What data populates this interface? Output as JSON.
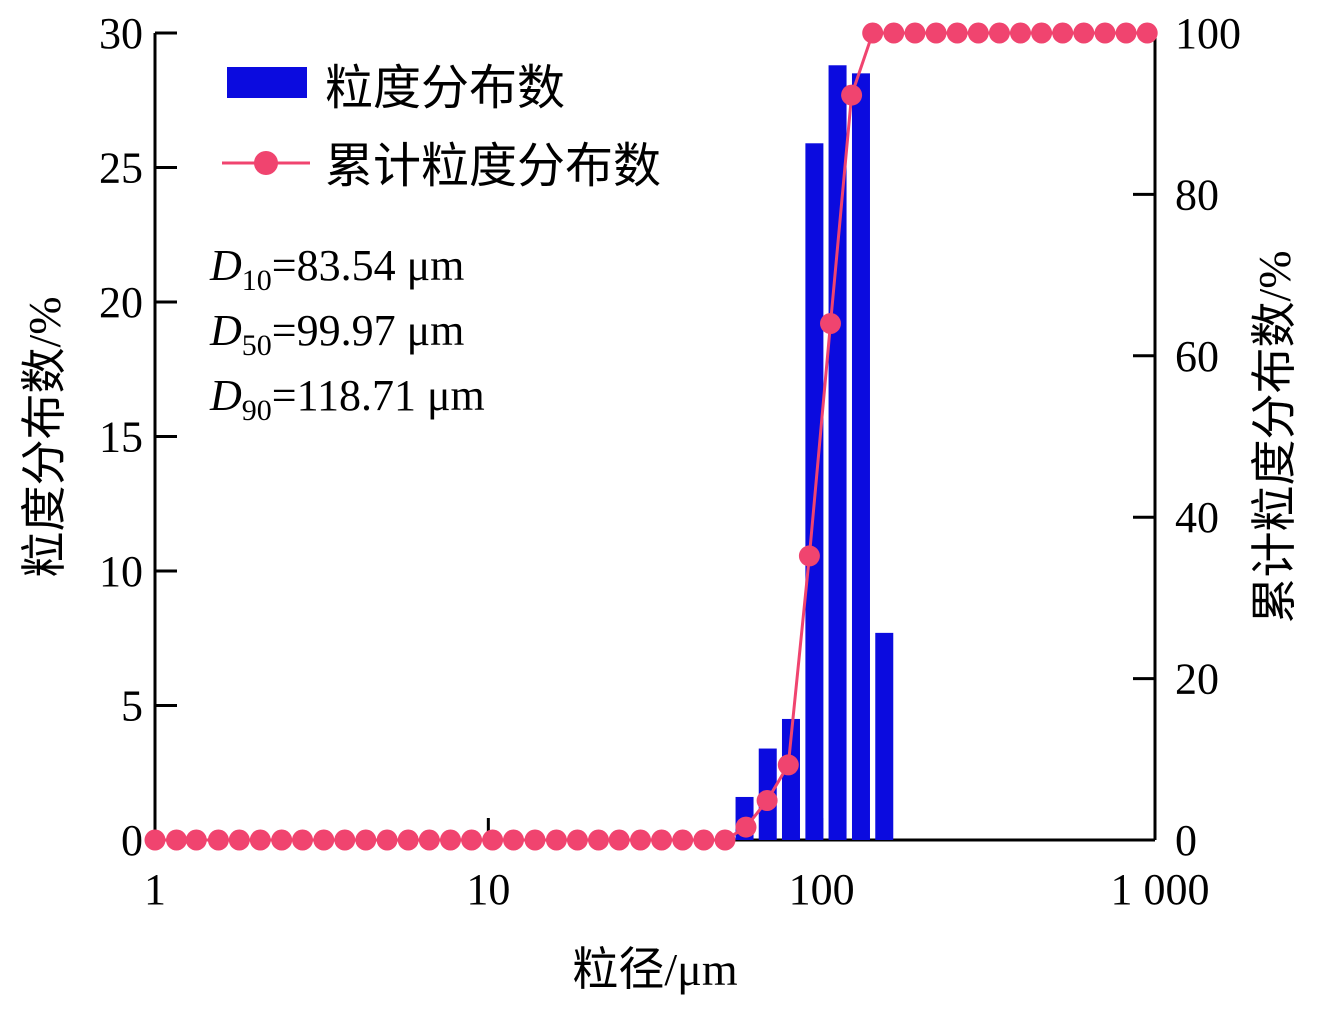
{
  "chart_data": {
    "type": "bar+line",
    "xscale": "log",
    "xlim": [
      1,
      1000
    ],
    "x_tick_labels": [
      "1",
      "10",
      "100",
      "1 000"
    ],
    "x_ticks": [
      1,
      10,
      100,
      1000
    ],
    "xlabel": "粒径/μm",
    "ylabel_left": "粒度分布数/%",
    "ylabel_right": "累计粒度分布数/%",
    "ylim_left": [
      0,
      30
    ],
    "ylim_right": [
      0,
      100
    ],
    "y_ticks_left": [
      0,
      5,
      10,
      15,
      20,
      25,
      30
    ],
    "y_ticks_right": [
      0,
      20,
      40,
      60,
      80,
      100
    ],
    "series": [
      {
        "name": "粒度分布数",
        "type": "bar",
        "axis": "left",
        "color": "#0b0bdf",
        "x": [
          58.7,
          68.9,
          80.9,
          95.1,
          111.6,
          131.2,
          154.1
        ],
        "values": [
          1.6,
          3.4,
          4.5,
          25.9,
          28.8,
          28.5,
          7.7
        ]
      },
      {
        "name": "累计粒度分布数",
        "type": "line",
        "axis": "right",
        "color": "#f0446f",
        "x": [
          1.0,
          1.16,
          1.33,
          1.55,
          1.79,
          2.07,
          2.4,
          2.77,
          3.21,
          3.71,
          4.29,
          4.97,
          5.75,
          6.65,
          7.7,
          8.91,
          10.3,
          11.9,
          13.8,
          16.0,
          18.5,
          21.4,
          24.7,
          28.6,
          33.1,
          38.3,
          44.3,
          51.3,
          59.3,
          68.6,
          79.4,
          91.9,
          106.3,
          123.0,
          142.3,
          164.6,
          190.5,
          220.4,
          255.0,
          295.0,
          341.4,
          395.0,
          457.0,
          528.7,
          611.7,
          707.8,
          818.9,
          947.5
        ],
        "values": [
          0,
          0,
          0,
          0,
          0,
          0,
          0,
          0,
          0,
          0,
          0,
          0,
          0,
          0,
          0,
          0,
          0,
          0,
          0,
          0,
          0,
          0,
          0,
          0,
          0,
          0,
          0,
          0,
          1.6,
          4.9,
          9.3,
          35.2,
          64.0,
          92.3,
          100,
          100,
          100,
          100,
          100,
          100,
          100,
          100,
          100,
          100,
          100,
          100,
          100,
          100
        ]
      }
    ],
    "legend": {
      "position": "top-left",
      "items": [
        {
          "label": "粒度分布数",
          "marker": "bar"
        },
        {
          "label": "累计粒度分布数",
          "marker": "line-dot"
        }
      ]
    },
    "annotations": [
      {
        "var": "D",
        "sub": "10",
        "text": "=83.54 μm"
      },
      {
        "var": "D",
        "sub": "50",
        "text": "=99.97 μm"
      },
      {
        "var": "D",
        "sub": "90",
        "text": "=118.71 μm"
      }
    ]
  }
}
